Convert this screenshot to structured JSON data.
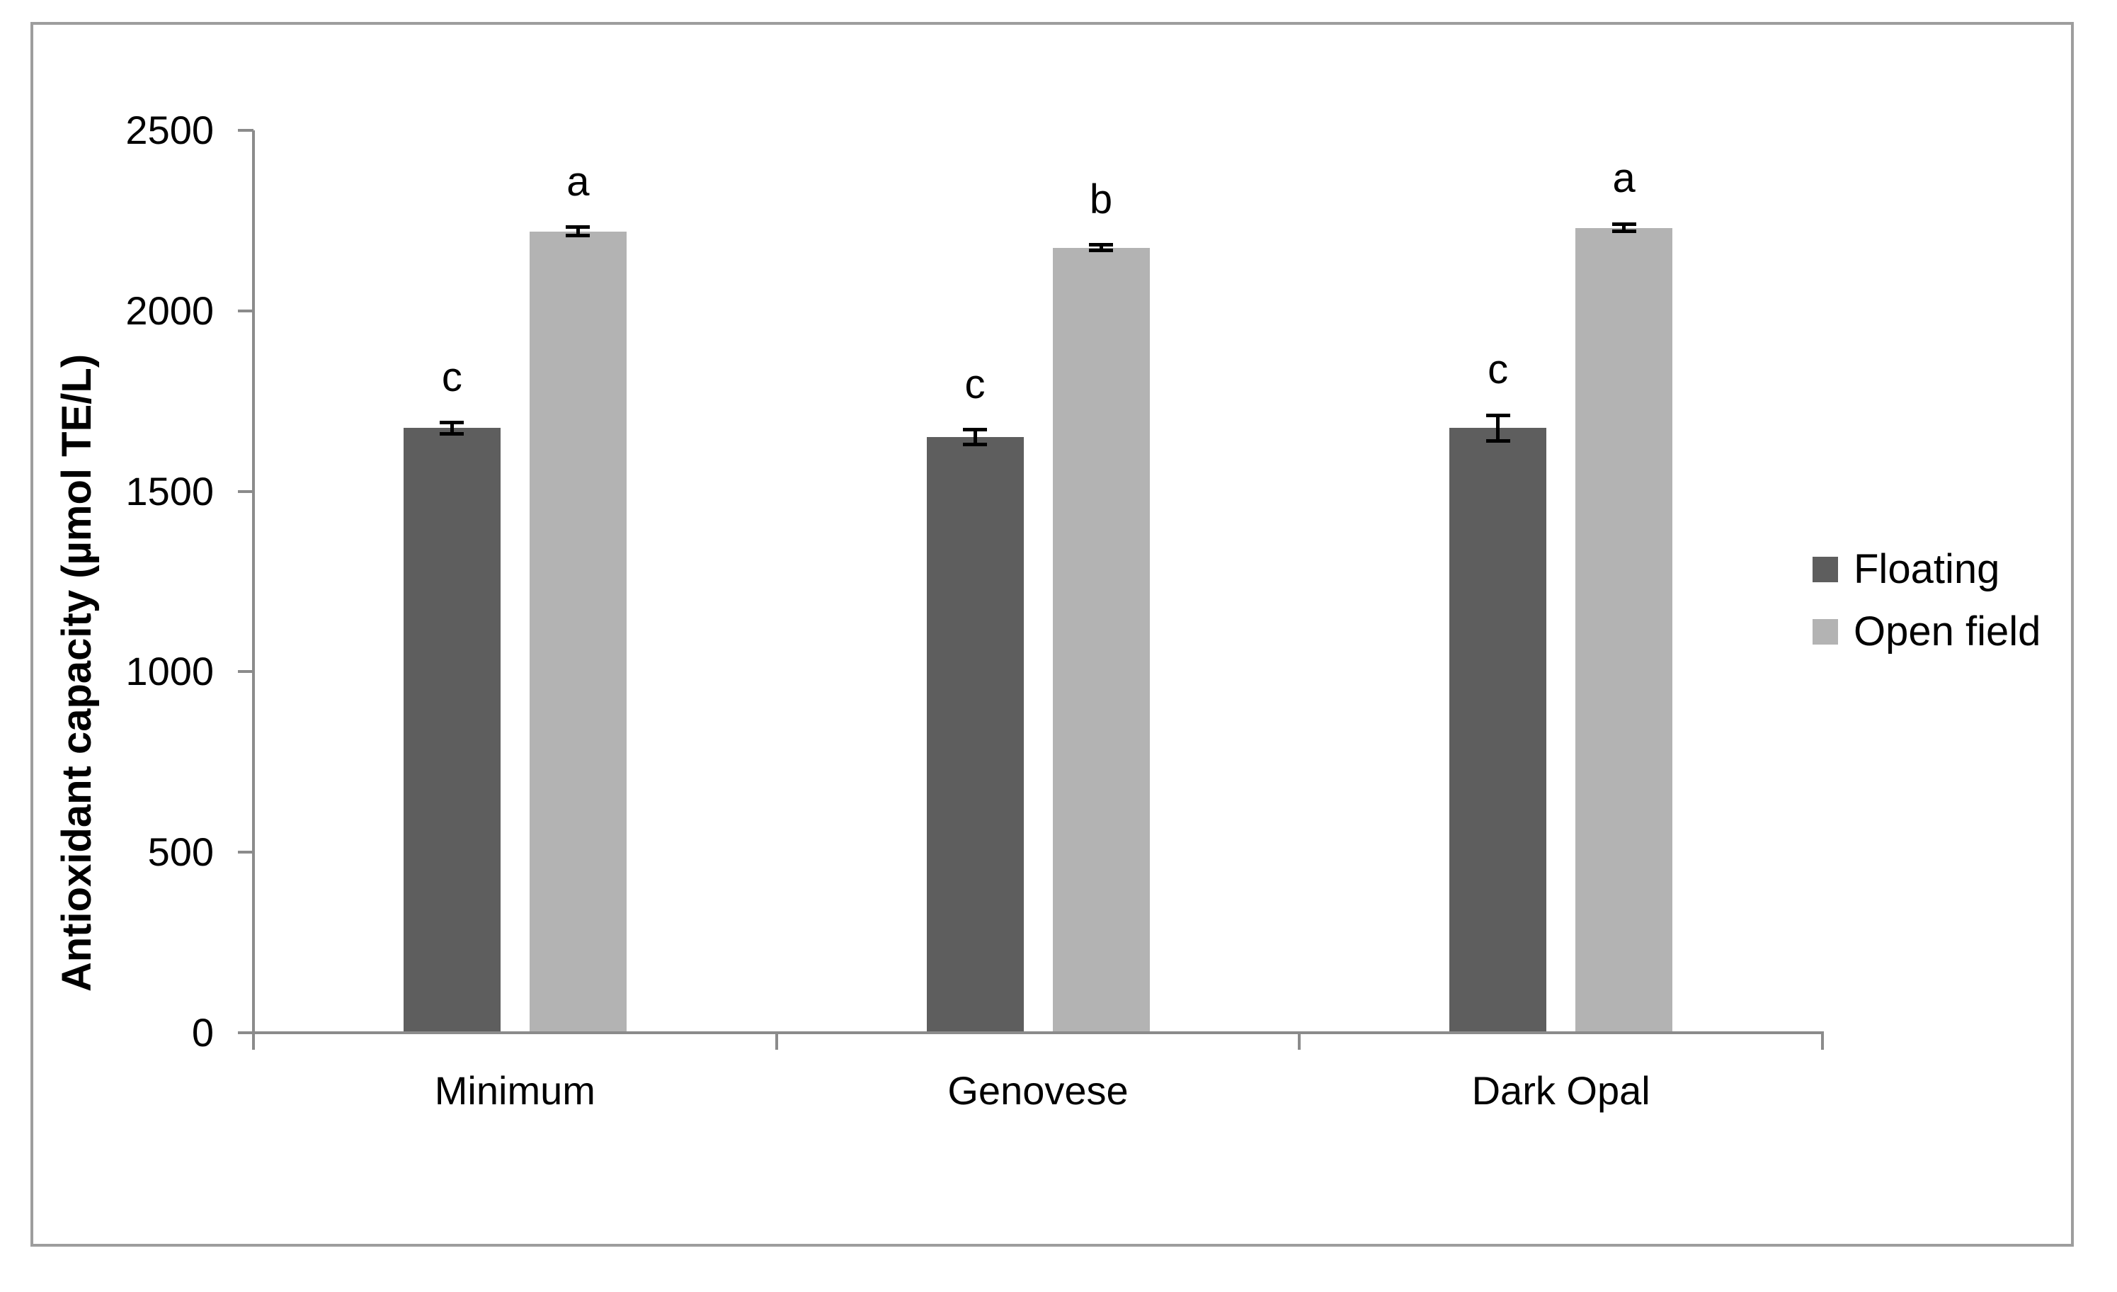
{
  "figure": {
    "background": "#ffffff",
    "border_color": "#9d9d9d"
  },
  "chart_data": {
    "type": "bar",
    "title": "",
    "ylabel": "Antioxidant capacity (µmol TE/L)",
    "xlabel": "",
    "ylim": [
      0,
      2500
    ],
    "yticks": [
      0,
      500,
      1000,
      1500,
      2000,
      2500
    ],
    "categories": [
      "Minimum",
      "Genovese",
      "Dark Opal"
    ],
    "series": [
      {
        "name": "Floating",
        "color": "#5e5e5e",
        "values": [
          1675,
          1650,
          1675
        ],
        "errors": [
          15,
          20,
          36
        ],
        "sig_letters": [
          "c",
          "c",
          "c"
        ]
      },
      {
        "name": "Open field",
        "color": "#b3b3b3",
        "values": [
          2220,
          2175,
          2230
        ],
        "errors": [
          12,
          8,
          10
        ],
        "sig_letters": [
          "a",
          "b",
          "a"
        ]
      }
    ],
    "legend_position": "right",
    "grid": false,
    "error_bar_color": "#000000",
    "axis_color": "#8b8b8b"
  }
}
